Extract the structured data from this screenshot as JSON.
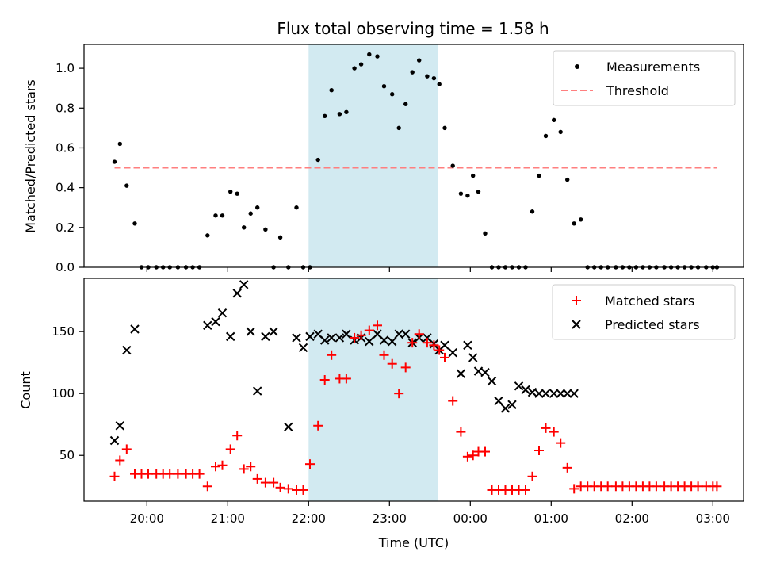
{
  "chart_data": [
    {
      "type": "scatter",
      "title": "Flux total observing time = 1.58 h",
      "xlabel": "",
      "ylabel": "Matched/Predicted stars",
      "ylim": [
        0,
        1.12
      ],
      "yticks": [
        "0.0",
        "0.2",
        "0.4",
        "0.6",
        "0.8",
        "1.0"
      ],
      "yticks_values": [
        0,
        0.2,
        0.4,
        0.6,
        0.8,
        1.0
      ],
      "highlight_span": {
        "x_start": "22:00",
        "x_end": "23:36",
        "color": "#add8e6"
      },
      "legend": {
        "position": "top-right",
        "entries": [
          "Measurements",
          "Threshold"
        ]
      },
      "threshold": {
        "name": "Threshold",
        "value": 0.5,
        "x_start": "19:36",
        "x_end": "03:03",
        "color": "#ff7f7f",
        "style": "dashed"
      },
      "series": [
        {
          "name": "Measurements",
          "color": "#000000",
          "marker": "dot",
          "x": [
            "19:36",
            "19:40",
            "19:45",
            "19:51",
            "19:56",
            "20:01",
            "20:07",
            "20:12",
            "20:17",
            "20:23",
            "20:29",
            "20:34",
            "20:39",
            "20:45",
            "20:51",
            "20:56",
            "21:02",
            "21:07",
            "21:12",
            "21:17",
            "21:22",
            "21:28",
            "21:34",
            "21:39",
            "21:45",
            "21:51",
            "21:56",
            "22:01",
            "22:07",
            "22:12",
            "22:17",
            "22:23",
            "22:28",
            "22:34",
            "22:39",
            "22:45",
            "22:51",
            "22:56",
            "23:02",
            "23:07",
            "23:12",
            "23:17",
            "23:22",
            "23:28",
            "23:33",
            "23:37",
            "23:41",
            "23:47",
            "23:53",
            "23:58",
            "00:02",
            "00:06",
            "00:11",
            "00:16",
            "00:21",
            "00:26",
            "00:31",
            "00:36",
            "00:41",
            "00:46",
            "00:51",
            "00:56",
            "01:02",
            "01:07",
            "01:12",
            "01:17",
            "01:22",
            "01:27",
            "01:32",
            "01:37",
            "01:42",
            "01:48",
            "01:53",
            "01:58",
            "02:03",
            "02:08",
            "02:13",
            "02:18",
            "02:24",
            "02:29",
            "02:34",
            "02:39",
            "02:44",
            "02:49",
            "02:55",
            "03:00",
            "03:03"
          ],
          "y": [
            0.53,
            0.62,
            0.41,
            0.22,
            0.0,
            0.0,
            0.0,
            0.0,
            0.0,
            0.0,
            0.0,
            0.0,
            0.0,
            0.16,
            0.26,
            0.26,
            0.38,
            0.37,
            0.2,
            0.27,
            0.3,
            0.19,
            0.0,
            0.15,
            0.0,
            0.3,
            0.0,
            0.0,
            0.54,
            0.76,
            0.89,
            0.77,
            0.78,
            1.0,
            1.02,
            1.07,
            1.06,
            0.91,
            0.87,
            0.7,
            0.82,
            0.98,
            1.04,
            0.96,
            0.95,
            0.92,
            0.7,
            0.51,
            0.37,
            0.36,
            0.46,
            0.38,
            0.17,
            0.0,
            0.0,
            0.0,
            0.0,
            0.0,
            0.0,
            0.28,
            0.46,
            0.66,
            0.74,
            0.68,
            0.44,
            0.22,
            0.24,
            0.0,
            0.0,
            0.0,
            0.0,
            0.0,
            0.0,
            0.0,
            0.0,
            0.0,
            0.0,
            0.0,
            0.0,
            0.0,
            0.0,
            0.0,
            0.0,
            0.0,
            0.0,
            0.0,
            0.0
          ]
        }
      ]
    },
    {
      "type": "scatter",
      "title": "",
      "xlabel": "Time (UTC)",
      "ylabel": "Count",
      "ylim": [
        13,
        193
      ],
      "yticks": [
        "50",
        "100",
        "150"
      ],
      "yticks_values": [
        50,
        100,
        150
      ],
      "xticks": [
        "20:00",
        "21:00",
        "22:00",
        "23:00",
        "00:00",
        "01:00",
        "02:00",
        "03:00"
      ],
      "xticks_values": [
        24,
        84,
        144,
        204,
        264,
        324,
        384,
        444
      ],
      "highlight_span": {
        "x_start": "22:00",
        "x_end": "23:36",
        "color": "#add8e6"
      },
      "legend": {
        "position": "top-right",
        "entries": [
          "Matched stars",
          "Predicted stars"
        ]
      },
      "series": [
        {
          "name": "Matched stars",
          "color": "#ff0000",
          "marker": "plus",
          "x": [
            "19:36",
            "19:40",
            "19:45",
            "19:51",
            "19:56",
            "20:01",
            "20:07",
            "20:12",
            "20:17",
            "20:23",
            "20:29",
            "20:34",
            "20:39",
            "20:45",
            "20:51",
            "20:56",
            "21:02",
            "21:07",
            "21:12",
            "21:17",
            "21:22",
            "21:28",
            "21:34",
            "21:39",
            "21:45",
            "21:51",
            "21:56",
            "22:01",
            "22:07",
            "22:12",
            "22:17",
            "22:23",
            "22:28",
            "22:34",
            "22:39",
            "22:45",
            "22:51",
            "22:56",
            "23:02",
            "23:07",
            "23:12",
            "23:17",
            "23:22",
            "23:28",
            "23:33",
            "23:37",
            "23:41",
            "23:47",
            "23:53",
            "23:58",
            "00:02",
            "00:06",
            "00:11",
            "00:16",
            "00:21",
            "00:26",
            "00:31",
            "00:36",
            "00:41",
            "00:46",
            "00:51",
            "00:56",
            "01:02",
            "01:07",
            "01:12",
            "01:17",
            "01:22",
            "01:27",
            "01:32",
            "01:37",
            "01:42",
            "01:48",
            "01:53",
            "01:58",
            "02:03",
            "02:08",
            "02:13",
            "02:18",
            "02:24",
            "02:29",
            "02:34",
            "02:39",
            "02:44",
            "02:49",
            "02:55",
            "03:00",
            "03:03"
          ],
          "y": [
            33,
            46,
            55,
            35,
            35,
            35,
            35,
            35,
            35,
            35,
            35,
            35,
            35,
            25,
            41,
            42,
            55,
            66,
            39,
            41,
            31,
            28,
            28,
            24,
            23,
            22,
            22,
            43,
            74,
            111,
            131,
            112,
            112,
            145,
            147,
            151,
            155,
            131,
            124,
            100,
            121,
            141,
            148,
            141,
            139,
            135,
            129,
            94,
            69,
            49,
            50,
            53,
            53,
            22,
            22,
            22,
            22,
            22,
            22,
            33,
            54,
            72,
            69,
            60,
            40,
            23,
            25,
            25,
            25,
            25,
            25,
            25,
            25,
            25,
            25,
            25,
            25,
            25,
            25,
            25,
            25,
            25,
            25,
            25,
            25,
            25,
            25
          ]
        },
        {
          "name": "Predicted stars",
          "color": "#000000",
          "marker": "x",
          "x": [
            "19:36",
            "19:40",
            "19:45",
            "19:51",
            "20:45",
            "20:51",
            "20:56",
            "21:02",
            "21:07",
            "21:12",
            "21:17",
            "21:22",
            "21:28",
            "21:34",
            "21:45",
            "21:51",
            "21:56",
            "22:01",
            "22:07",
            "22:12",
            "22:17",
            "22:23",
            "22:28",
            "22:34",
            "22:39",
            "22:45",
            "22:51",
            "22:56",
            "23:02",
            "23:07",
            "23:12",
            "23:17",
            "23:22",
            "23:28",
            "23:33",
            "23:37",
            "23:41",
            "23:47",
            "23:53",
            "23:58",
            "00:02",
            "00:06",
            "00:11",
            "00:16",
            "00:21",
            "00:26",
            "00:31",
            "00:36",
            "00:41",
            "00:46",
            "00:51",
            "00:56",
            "01:02",
            "01:07",
            "01:12",
            "01:17"
          ],
          "y": [
            62,
            74,
            135,
            152,
            155,
            158,
            165,
            146,
            181,
            188,
            150,
            102,
            146,
            150,
            73,
            145,
            137,
            146,
            148,
            143,
            145,
            145,
            148,
            143,
            145,
            142,
            148,
            143,
            142,
            148,
            148,
            141,
            145,
            145,
            140,
            135,
            139,
            133,
            116,
            139,
            129,
            118,
            117,
            110,
            94,
            88,
            91,
            106,
            103,
            101,
            100,
            100,
            100,
            100,
            100,
            100
          ]
        }
      ]
    }
  ]
}
